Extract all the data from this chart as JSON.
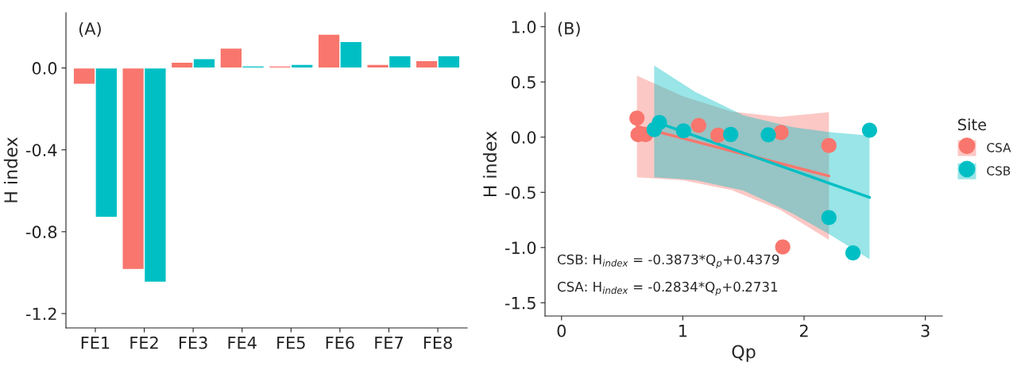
{
  "chart_data": [
    {
      "type": "bar",
      "title": "(A)",
      "ylabel": "H index",
      "categories": [
        "FE1",
        "FE2",
        "FE3",
        "FE4",
        "FE5",
        "FE6",
        "FE7",
        "FE8"
      ],
      "series": [
        {
          "color": "#f8766d",
          "values": [
            -0.08,
            -0.985,
            0.028,
            0.097,
            0.01,
            0.165,
            0.018,
            0.036
          ]
        },
        {
          "color": "#00bfc4",
          "values": [
            -0.73,
            -1.047,
            0.046,
            0.01,
            0.018,
            0.129,
            0.06,
            0.06
          ]
        }
      ],
      "ylim": [
        -1.27,
        0.27
      ],
      "yticks": [
        {
          "value": 0.0,
          "label": "0.0"
        },
        {
          "value": -0.4,
          "label": "-0.4"
        },
        {
          "value": -0.8,
          "label": "-0.8"
        },
        {
          "value": -1.2,
          "label": "-1.2"
        }
      ],
      "grid": false,
      "legend": false
    },
    {
      "type": "scatter",
      "title": "(B)",
      "xlabel": "Qp",
      "ylabel": "H index",
      "legend_title": "Site",
      "legend": "right",
      "series": [
        {
          "name": "CSA",
          "type": "scatter",
          "color": "#f8766d",
          "x": [
            0.622,
            0.631,
            0.693,
            1.131,
            1.29,
            1.81,
            2.205,
            1.824
          ],
          "values": [
            0.172,
            0.024,
            0.024,
            0.106,
            0.018,
            0.042,
            -0.076,
            -0.994
          ]
        },
        {
          "name": "CSB",
          "type": "scatter",
          "color": "#00bfc4",
          "x": [
            0.764,
            0.807,
            1.006,
            1.395,
            1.705,
            2.205,
            2.54,
            2.403
          ],
          "values": [
            0.069,
            0.133,
            0.057,
            0.024,
            0.021,
            -0.728,
            0.063,
            -1.048
          ]
        },
        {
          "type": "line",
          "marker": "none",
          "color": "#f8766d",
          "x": [
            0.622,
            1.0,
            1.4,
            1.8,
            2.205
          ],
          "values": [
            0.097,
            -0.01,
            -0.124,
            -0.237,
            -0.352
          ],
          "upper": [
            0.557,
            0.37,
            0.231,
            0.183,
            0.226
          ],
          "lower": [
            -0.363,
            -0.39,
            -0.479,
            -0.657,
            -0.93
          ]
        },
        {
          "type": "line",
          "marker": "none",
          "color": "#00bfc4",
          "x": [
            0.764,
            1.1,
            1.5,
            1.9,
            2.2,
            2.54
          ],
          "values": [
            0.142,
            0.012,
            -0.143,
            -0.298,
            -0.414,
            -0.546
          ],
          "upper": [
            0.648,
            0.412,
            0.197,
            0.092,
            0.046,
            0.014
          ],
          "lower": [
            -0.364,
            -0.388,
            -0.483,
            -0.688,
            -0.874,
            -1.106
          ]
        }
      ],
      "xlim": [
        -0.136,
        3.14
      ],
      "xticks": [
        0,
        1,
        2,
        3
      ],
      "ylim": [
        -1.62,
        1.127
      ],
      "yticks": [
        {
          "value": -1.5,
          "label": "-1.5"
        },
        {
          "value": -1.0,
          "label": "-1.0"
        },
        {
          "value": -0.5,
          "label": "-0.5"
        },
        {
          "value": 0.0,
          "label": "0.0"
        },
        {
          "value": 0.5,
          "label": "0.5"
        },
        {
          "value": 1.0,
          "label": "1.0"
        }
      ],
      "grid": false,
      "marker": "circle",
      "annotations": [
        "CSB: H$_{index}$ = -0.3873*Q$_{p}$+0.4379",
        "CSA: H$_{index}$ = -0.2834*Q$_{p}$+0.2731"
      ]
    }
  ]
}
